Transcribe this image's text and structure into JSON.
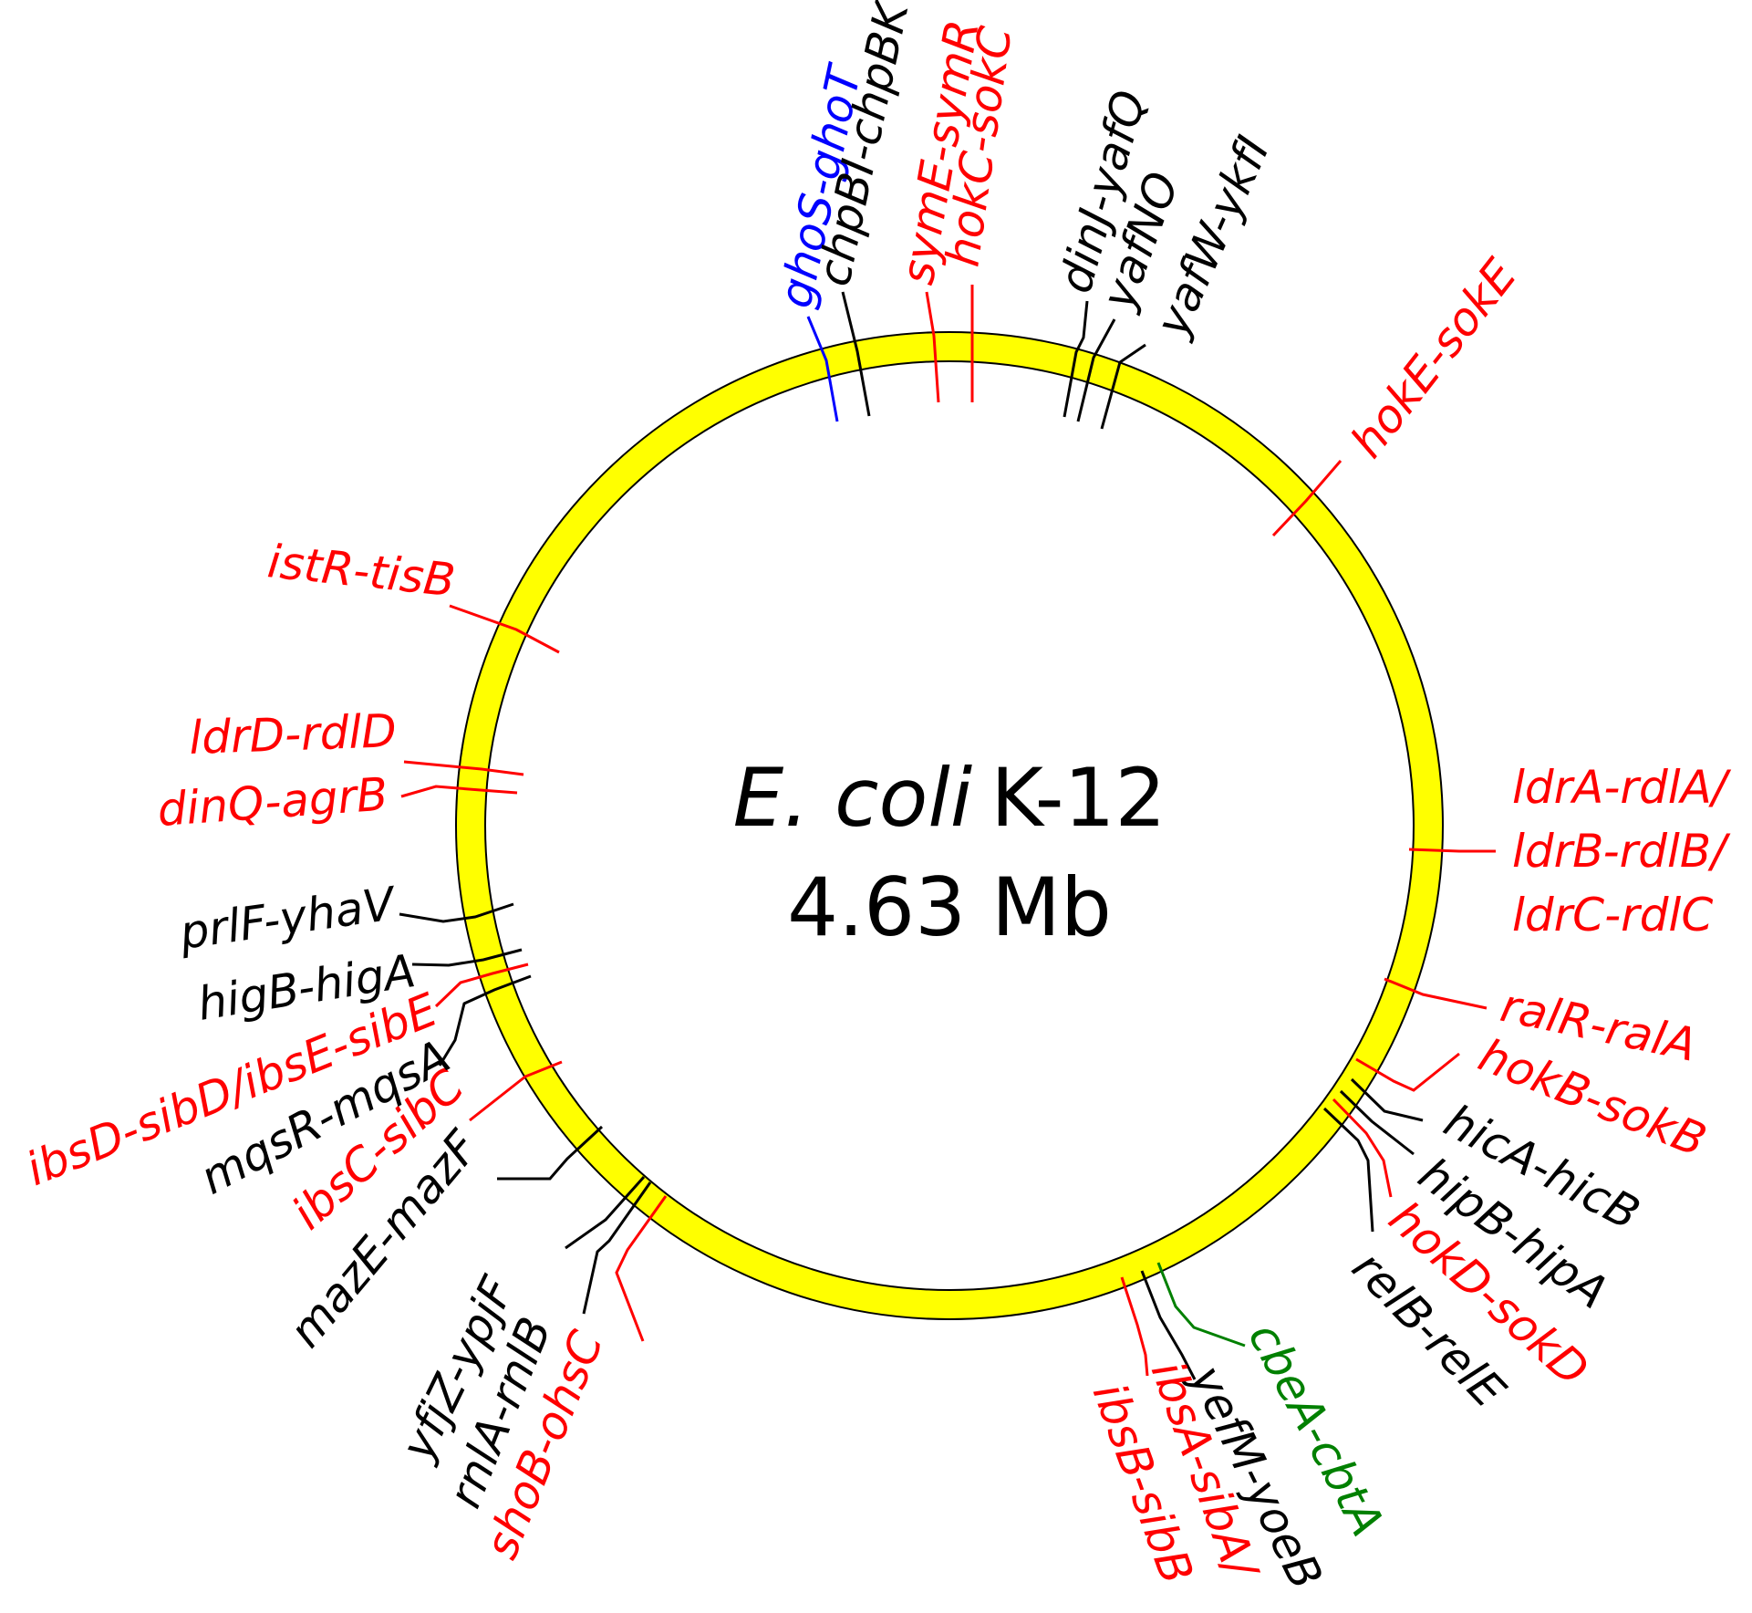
{
  "title": {
    "organism": "E. coli",
    "strain": "K-12",
    "genome_size": "4.63 Mb"
  },
  "colors": {
    "ring_fill": "#FFFF00",
    "ring_outline": "#000000",
    "type_II": "#000000",
    "type_I": "#FF0000",
    "type_V": "#0000FF",
    "type_IV": "#008000"
  },
  "loci": [
    {
      "name": "ghoS-ghoT",
      "color": "#0000FF"
    },
    {
      "name": "chpBI-chpBK",
      "color": "#000000"
    },
    {
      "name": "symE-symR",
      "color": "#FF0000"
    },
    {
      "name": "hokC-sokC",
      "color": "#FF0000"
    },
    {
      "name": "dinJ-yafQ",
      "color": "#000000"
    },
    {
      "name": "yafNO",
      "color": "#000000"
    },
    {
      "name": "yafW-ykfI",
      "color": "#000000"
    },
    {
      "name": "hokE-sokE",
      "color": "#FF0000"
    },
    {
      "name": "ldrA-rdlA/",
      "color": "#FF0000"
    },
    {
      "name": "ldrB-rdlB/",
      "color": "#FF0000"
    },
    {
      "name": "ldrC-rdlC",
      "color": "#FF0000"
    },
    {
      "name": "ralR-ralA",
      "color": "#FF0000"
    },
    {
      "name": "hokB-sokB",
      "color": "#FF0000"
    },
    {
      "name": "hicA-hicB",
      "color": "#000000"
    },
    {
      "name": "hipB-hipA",
      "color": "#000000"
    },
    {
      "name": "hokD-sokD",
      "color": "#FF0000"
    },
    {
      "name": "relB-relE",
      "color": "#000000"
    },
    {
      "name": "cbeA-cbtA",
      "color": "#008000"
    },
    {
      "name": "yefM-yoeB",
      "color": "#000000"
    },
    {
      "name": "ibsA-sibA/",
      "color": "#FF0000"
    },
    {
      "name": "ibsB-sibB",
      "color": "#FF0000"
    },
    {
      "name": "shoB-ohsC",
      "color": "#FF0000"
    },
    {
      "name": "rnlA-rnlB",
      "color": "#000000"
    },
    {
      "name": "yfjZ-ypjF",
      "color": "#000000"
    },
    {
      "name": "mazE-mazF",
      "color": "#000000"
    },
    {
      "name": "ibsC-sibC",
      "color": "#FF0000"
    },
    {
      "name": "mqsR-mqsA",
      "color": "#000000"
    },
    {
      "name": "ibsD-sibD/ibsE-sibE",
      "color": "#FF0000"
    },
    {
      "name": "higB-higA",
      "color": "#000000"
    },
    {
      "name": "prlF-yhaV",
      "color": "#000000"
    },
    {
      "name": "dinQ-agrB",
      "color": "#FF0000"
    },
    {
      "name": "ldrD-rdlD",
      "color": "#FF0000"
    },
    {
      "name": "istR-tisB",
      "color": "#FF0000"
    }
  ]
}
